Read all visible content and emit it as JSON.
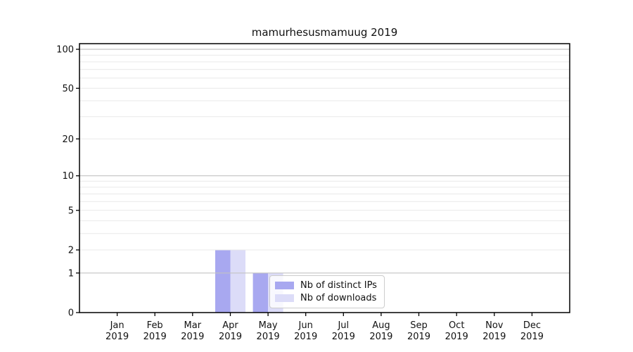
{
  "title": "mamurhesusmamuug 2019",
  "chart_data": {
    "type": "bar",
    "title": "mamurhesusmamuug 2019",
    "categories": [
      "Jan",
      "Feb",
      "Mar",
      "Apr",
      "May",
      "Jun",
      "Jul",
      "Aug",
      "Sep",
      "Oct",
      "Nov",
      "Dec"
    ],
    "category_year": "2019",
    "series": [
      {
        "name": "Nb of distinct IPs",
        "color": "#a8a8f0",
        "values": [
          0,
          0,
          0,
          2,
          1,
          0,
          0,
          0,
          0,
          0,
          0,
          0
        ]
      },
      {
        "name": "Nb of downloads",
        "color": "#dcdcf8",
        "values": [
          0,
          0,
          0,
          2,
          1,
          0,
          0,
          0,
          0,
          0,
          0,
          0
        ]
      }
    ],
    "yscale": "log1p",
    "ytick_labels": [
      0,
      1,
      2,
      5,
      10,
      20,
      50,
      100
    ],
    "ylim": [
      0,
      110
    ],
    "grid": {
      "on": true,
      "major_values": [
        1,
        10,
        100
      ],
      "minor_values": [
        2,
        3,
        4,
        5,
        6,
        7,
        8,
        9,
        20,
        30,
        40,
        50,
        60,
        70,
        80,
        90
      ],
      "major_color": "#c3c3c3",
      "minor_color": "#e9e9e9"
    },
    "axis_color": "#000000",
    "text_color": "#111111",
    "legend_position": "lower center"
  }
}
